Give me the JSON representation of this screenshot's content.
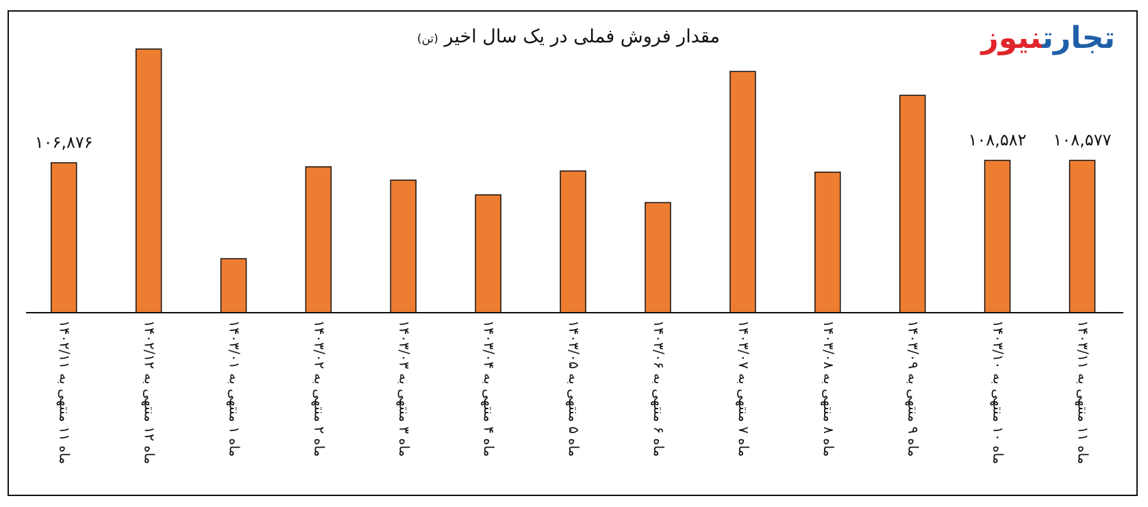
{
  "logo": {
    "part1": "تجارت",
    "part2": "نیوز",
    "color1": "#1f5fa8",
    "color2": "#e0262b"
  },
  "chart_data": {
    "type": "bar",
    "title": "مقدار فروش فملی در یک سال اخیر",
    "title_unit": "(تن)",
    "bar_color": "#ed7d31",
    "categories": [
      "ماه ۱۱ منتهی به ۱۴۰۳/۱۱",
      "ماه ۱۰ منتهی به ۱۴۰۳/۱۰",
      "ماه ۹ منتهی به ۱۴۰۳/۰۹",
      "ماه ۸ منتهی به ۱۴۰۳/۰۸",
      "ماه ۷ منتهی به ۱۴۰۳/۰۷",
      "ماه ۶ منتهی به ۱۴۰۳/۰۶",
      "ماه ۵ منتهی به ۱۴۰۳/۰۵",
      "ماه ۴ منتهی به ۱۴۰۳/۰۴",
      "ماه ۳ منتهی به ۱۴۰۳/۰۳",
      "ماه ۲ منتهی به ۱۴۰۳/۰۲",
      "ماه ۱ منتهی به ۱۴۰۳/۰۱",
      "ماه ۱۲ منتهی به ۱۴۰۲/۱۲",
      "ماه ۱۱ منتهی به ۱۴۰۲/۱۱"
    ],
    "values": [
      108577,
      108582,
      155000,
      100200,
      172000,
      78500,
      101000,
      84000,
      94500,
      104000,
      38500,
      188000,
      106876
    ],
    "data_labels": [
      "۱۰۸,۵۷۷",
      "۱۰۸,۵۸۲",
      "",
      "",
      "",
      "",
      "",
      "",
      "",
      "",
      "",
      "",
      "۱۰۶,۸۷۶"
    ],
    "ylim": [
      0,
      200000
    ],
    "direction": "rtl",
    "grid": false,
    "legend": "none"
  }
}
